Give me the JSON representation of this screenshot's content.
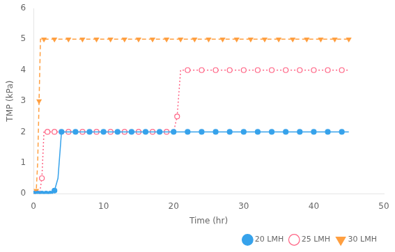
{
  "chart_data": {
    "type": "line",
    "xlabel": "Time (hr)",
    "ylabel": "TMP (kPa)",
    "xlim": [
      0,
      50
    ],
    "ylim": [
      0,
      6
    ],
    "xticks": [
      0,
      10,
      20,
      30,
      40,
      50
    ],
    "yticks": [
      0,
      1,
      2,
      3,
      4,
      5,
      6
    ],
    "grid": false,
    "legend": "lower right",
    "series": [
      {
        "name": "20 LMH",
        "line_style": "solid",
        "marker": "circle",
        "x": [
          0,
          0.3,
          0.6,
          0.9,
          1.2,
          1.5,
          1.8,
          2.1,
          2.4,
          2.7,
          3.0,
          3.5,
          4.0,
          5.0,
          6.0,
          7.0,
          8.0,
          9.0,
          10.0,
          11.0,
          12.0,
          13.0,
          14.0,
          15.0,
          16.0,
          17.0,
          18.0,
          19.0,
          20.0,
          21.0,
          22.0,
          23.0,
          24.0,
          25.0,
          26.0,
          27.0,
          28.0,
          29.0,
          30.0,
          31.0,
          32.0,
          33.0,
          34.0,
          35.0,
          36.0,
          37.0,
          38.0,
          39.0,
          40.0,
          41.0,
          42.0,
          43.0,
          44.0,
          45.0
        ],
        "values": [
          0,
          0,
          0,
          0,
          0,
          0,
          0,
          0,
          0,
          0.05,
          0.1,
          0.5,
          2.0,
          2.0,
          2.0,
          2.0,
          2.0,
          2.0,
          2.0,
          2.0,
          2.0,
          2.0,
          2.0,
          2.0,
          2.0,
          2.0,
          2.0,
          2.0,
          2.0,
          2.0,
          2.0,
          2.0,
          2.0,
          2.0,
          2.0,
          2.0,
          2.0,
          2.0,
          2.0,
          2.0,
          2.0,
          2.0,
          2.0,
          2.0,
          2.0,
          2.0,
          2.0,
          2.0,
          2.0,
          2.0,
          2.0,
          2.0,
          2.0,
          2.0
        ]
      },
      {
        "name": "25 LMH",
        "line_style": "dotted",
        "marker": "open_circle",
        "x": [
          0,
          0.3,
          0.6,
          0.9,
          1.2,
          1.5,
          2.0,
          2.5,
          3.0,
          4.0,
          5.0,
          6.0,
          7.0,
          8.0,
          9.0,
          10.0,
          11.0,
          12.0,
          13.0,
          14.0,
          15.0,
          16.0,
          17.0,
          18.0,
          19.0,
          20.0,
          20.5,
          21.0,
          22.0,
          23.0,
          24.0,
          25.0,
          26.0,
          27.0,
          28.0,
          29.0,
          30.0,
          31.0,
          32.0,
          33.0,
          34.0,
          35.0,
          36.0,
          37.0,
          38.0,
          39.0,
          40.0,
          41.0,
          42.0,
          43.0,
          44.0,
          45.0
        ],
        "values": [
          0,
          0,
          0,
          0.05,
          0.5,
          2.0,
          2.0,
          2.0,
          2.0,
          2.0,
          2.0,
          2.0,
          2.0,
          2.0,
          2.0,
          2.0,
          2.0,
          2.0,
          2.0,
          2.0,
          2.0,
          2.0,
          2.0,
          2.0,
          2.0,
          2.0,
          2.5,
          4.0,
          4.0,
          4.0,
          4.0,
          4.0,
          4.0,
          4.0,
          4.0,
          4.0,
          4.0,
          4.0,
          4.0,
          4.0,
          4.0,
          4.0,
          4.0,
          4.0,
          4.0,
          4.0,
          4.0,
          4.0,
          4.0,
          4.0,
          4.0,
          4.0
        ]
      },
      {
        "name": "30 LMH",
        "line_style": "dashed",
        "marker": "triangle_down",
        "x": [
          0,
          0.2,
          0.4,
          0.6,
          0.8,
          1.0,
          1.5,
          2.0,
          3.0,
          4.0,
          5.0,
          6.0,
          7.0,
          8.0,
          9.0,
          10.0,
          11.0,
          12.0,
          13.0,
          14.0,
          15.0,
          16.0,
          17.0,
          18.0,
          19.0,
          20.0,
          21.0,
          22.0,
          23.0,
          24.0,
          25.0,
          26.0,
          27.0,
          28.0,
          29.0,
          30.0,
          31.0,
          32.0,
          33.0,
          34.0,
          35.0,
          36.0,
          37.0,
          38.0,
          39.0,
          40.0,
          41.0,
          42.0,
          43.0,
          44.0,
          45.0
        ],
        "values": [
          0,
          0,
          0.1,
          1.0,
          3.0,
          5.0,
          5.0,
          5.0,
          5.0,
          5.0,
          5.0,
          5.0,
          5.0,
          5.0,
          5.0,
          5.0,
          5.0,
          5.0,
          5.0,
          5.0,
          5.0,
          5.0,
          5.0,
          5.0,
          5.0,
          5.0,
          5.0,
          5.0,
          5.0,
          5.0,
          5.0,
          5.0,
          5.0,
          5.0,
          5.0,
          5.0,
          5.0,
          5.0,
          5.0,
          5.0,
          5.0,
          5.0,
          5.0,
          5.0,
          5.0,
          5.0,
          5.0,
          5.0,
          5.0,
          5.0,
          5.0
        ]
      }
    ]
  }
}
